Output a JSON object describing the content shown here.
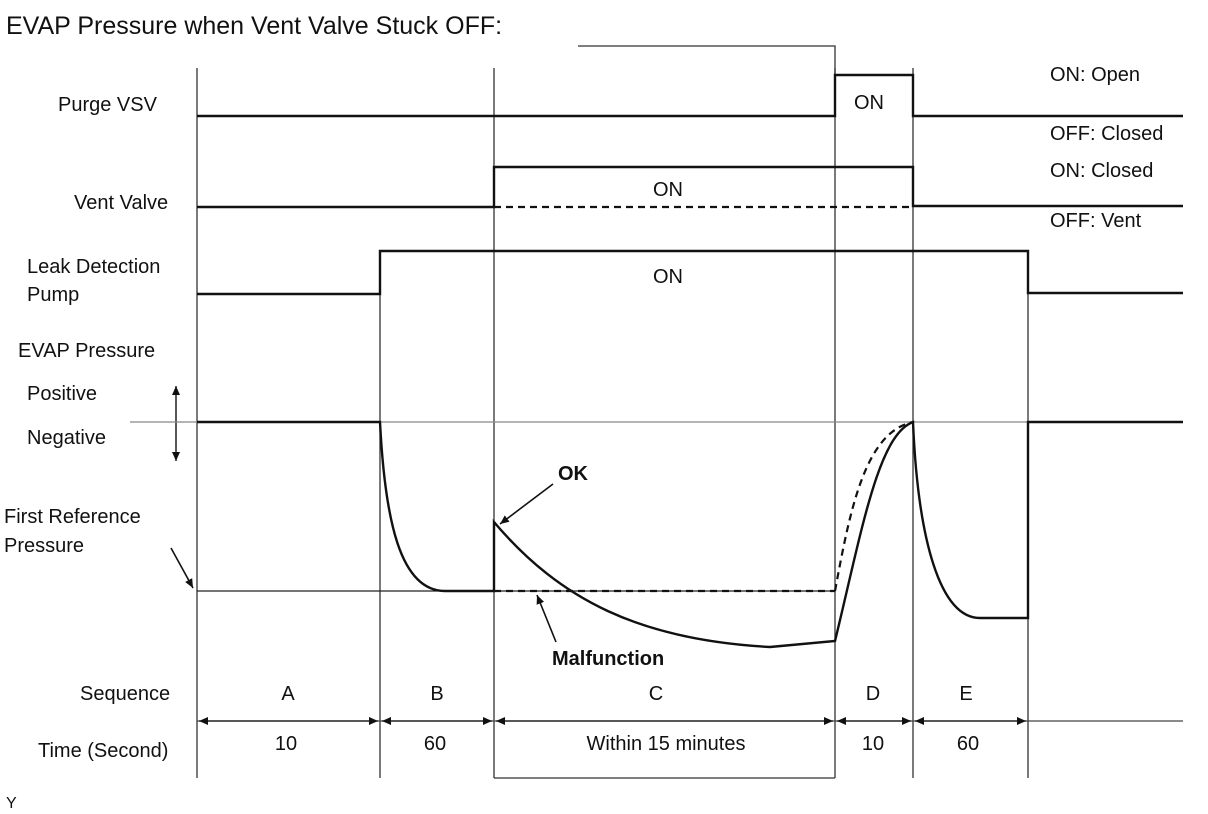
{
  "title": "EVAP Pressure when Vent Valve Stuck OFF:",
  "rows": {
    "purge_vsv": {
      "label": "Purge VSV",
      "on_text": "ON",
      "state_on": "ON: Open",
      "state_off": "OFF: Closed"
    },
    "vent_valve": {
      "label": "Vent Valve",
      "on_text": "ON",
      "state_on": "ON: Closed",
      "state_off": "OFF: Vent"
    },
    "leak_pump": {
      "label_line1": "Leak Detection",
      "label_line2": "Pump",
      "on_text": "ON"
    },
    "evap_pressure": {
      "label": "EVAP Pressure",
      "positive": "Positive",
      "negative": "Negative",
      "first_ref_line1": "First Reference",
      "first_ref_line2": "Pressure",
      "ok_label": "OK",
      "malfunction_label": "Malfunction"
    }
  },
  "sequence": {
    "label": "Sequence",
    "time_label": "Time (Second)",
    "phases": [
      {
        "id": "A",
        "time": "10"
      },
      {
        "id": "B",
        "time": "60"
      },
      {
        "id": "C",
        "time": "Within 15 minutes"
      },
      {
        "id": "D",
        "time": "10"
      },
      {
        "id": "E",
        "time": "60"
      }
    ]
  },
  "footer_mark": "Y"
}
